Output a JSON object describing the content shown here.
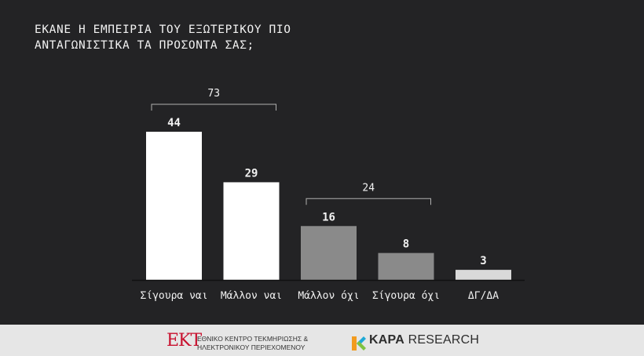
{
  "question": {
    "line1": "ΕΚΑΝΕ Η ΕΜΠΕΙΡΙΑ ΤΟΥ ΕΞΩΤΕΡΙΚΟΥ ΠΙΟ",
    "line2": "ΑΝΤΑΓΩΝΙΣΤΙΚΑ ΤΑ ΠΡΟΣΟΝΤΑ ΣΑΣ;"
  },
  "colors": {
    "background": "#232325",
    "bar_yes": "#ffffff",
    "bar_no": "#8a8a8a",
    "bar_dkna": "#d9d9d9",
    "text": "#f2f2f2",
    "bracket": "#b0b0b0"
  },
  "chart_data": {
    "type": "bar",
    "title": "ΕΚΑΝΕ Η ΕΜΠΕΙΡΙΑ ΤΟΥ ΕΞΩΤΕΡΙΚΟΥ ΠΙΟ ΑΝΤΑΓΩΝΙΣΤΙΚΑ ΤΑ ΠΡΟΣΟΝΤΑ ΣΑΣ;",
    "categories": [
      "Σίγουρα ναι",
      "Μάλλον ναι",
      "Μάλλον όχι",
      "Σίγουρα όχι",
      "ΔΓ/ΔΑ"
    ],
    "values": [
      44,
      29,
      16,
      8,
      3
    ],
    "bar_colors": [
      "#ffffff",
      "#ffffff",
      "#8a8a8a",
      "#8a8a8a",
      "#d9d9d9"
    ],
    "ylim": [
      0,
      44
    ],
    "xlabel": "",
    "ylabel": "",
    "grid": false,
    "groups": [
      {
        "label": "73",
        "from": 0,
        "to": 1
      },
      {
        "label": "24",
        "from": 2,
        "to": 3
      }
    ]
  },
  "footer": {
    "ekt_logo": "ΕΚΤ",
    "ekt_line1": "ΕΘΝΙΚΟ ΚΕΝΤΡΟ ΤΕΚΜΗΡΙΩΣΗΣ &",
    "ekt_line2": "ΗΛΕΚΤΡΟΝΙΚΟΥ ΠΕΡΙΕΧΟΜΕΝΟΥ",
    "kapa_bold": "KAPA",
    "kapa_rest": " RESEARCH"
  }
}
